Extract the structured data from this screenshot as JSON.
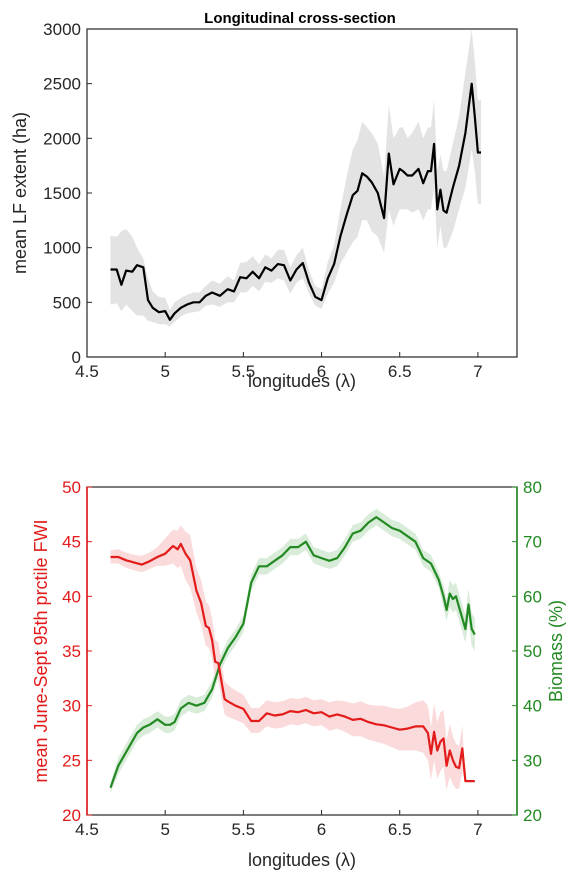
{
  "chart_data": [
    {
      "type": "line",
      "title": "Longitudinal cross-section",
      "xlabel": "longitudes (λ)",
      "ylabel": "mean LF extent (ha)",
      "xlim": [
        4.5,
        7.25
      ],
      "ylim": [
        0,
        3000
      ],
      "xticks": [
        4.5,
        5,
        5.5,
        6,
        6.5,
        7
      ],
      "xtick_labels": [
        "4.5",
        "5",
        "5.5",
        "6",
        "6.5",
        "7"
      ],
      "yticks": [
        0,
        500,
        1000,
        1500,
        2000,
        2500,
        3000
      ],
      "ytick_labels": [
        "0",
        "500",
        "1000",
        "1500",
        "2000",
        "2500",
        "3000"
      ],
      "grid": false,
      "colors": {
        "line": "#000000",
        "band": "#e3e3e3",
        "axis": "#262626"
      },
      "series": [
        {
          "x": [
            4.65,
            4.69,
            4.72,
            4.75,
            4.79,
            4.82,
            4.86,
            4.89,
            4.92,
            4.96,
            5.0,
            5.03,
            5.06,
            5.1,
            5.14,
            5.18,
            5.22,
            5.26,
            5.3,
            5.35,
            5.4,
            5.44,
            5.48,
            5.52,
            5.56,
            5.6,
            5.64,
            5.68,
            5.72,
            5.76,
            5.8,
            5.84,
            5.88,
            5.92,
            5.96,
            6.0,
            6.04,
            6.08,
            6.12,
            6.16,
            6.2,
            6.23,
            6.26,
            6.29,
            6.32,
            6.36,
            6.4,
            6.43,
            6.46,
            6.48,
            6.5,
            6.52,
            6.55,
            6.58,
            6.62,
            6.65,
            6.68,
            6.7,
            6.72,
            6.74,
            6.76,
            6.78,
            6.8,
            6.84,
            6.88,
            6.92,
            6.96,
            6.98,
            7.0,
            7.02
          ],
          "y": [
            800,
            800,
            660,
            790,
            780,
            840,
            820,
            520,
            450,
            410,
            420,
            340,
            400,
            450,
            480,
            500,
            500,
            560,
            590,
            560,
            620,
            600,
            730,
            720,
            780,
            720,
            820,
            790,
            850,
            840,
            700,
            800,
            860,
            680,
            550,
            520,
            720,
            850,
            1100,
            1300,
            1480,
            1520,
            1680,
            1650,
            1600,
            1500,
            1270,
            1860,
            1580,
            1650,
            1720,
            1700,
            1660,
            1660,
            1720,
            1590,
            1700,
            1700,
            1950,
            1350,
            1530,
            1340,
            1320,
            1550,
            1750,
            2050,
            2500,
            2200,
            1870,
            1870
          ],
          "lower": [
            480,
            490,
            420,
            480,
            420,
            380,
            380,
            330,
            320,
            300,
            300,
            280,
            320,
            370,
            400,
            410,
            420,
            470,
            480,
            460,
            500,
            500,
            590,
            590,
            650,
            600,
            690,
            680,
            720,
            700,
            580,
            680,
            720,
            580,
            470,
            440,
            580,
            680,
            850,
            950,
            1050,
            1100,
            1250,
            1250,
            1150,
            1100,
            950,
            1350,
            1200,
            1280,
            1350,
            1350,
            1350,
            1320,
            1350,
            1250,
            1350,
            1350,
            1550,
            1000,
            1200,
            1000,
            1000,
            1150,
            1350,
            1550,
            1900,
            1700,
            1400,
            1400
          ],
          "upper": [
            1110,
            1100,
            1150,
            1170,
            1100,
            1000,
            900,
            720,
            600,
            550,
            540,
            430,
            500,
            540,
            570,
            590,
            590,
            650,
            700,
            670,
            740,
            700,
            860,
            870,
            920,
            850,
            940,
            900,
            980,
            980,
            820,
            930,
            1000,
            790,
            650,
            620,
            870,
            1020,
            1350,
            1650,
            1900,
            1980,
            2150,
            2100,
            2050,
            1950,
            1650,
            2300,
            2000,
            2050,
            2100,
            2100,
            2000,
            2050,
            2150,
            2000,
            2100,
            2100,
            2350,
            1700,
            1850,
            1700,
            1700,
            1950,
            2200,
            2600,
            3000,
            2700,
            2350,
            2350
          ]
        }
      ]
    },
    {
      "type": "line",
      "title": "",
      "xlabel": "longitudes (λ)",
      "ylabel": "mean June-Sept 95th prctile FWI",
      "y2label": "Biomass (%)",
      "xlim": [
        4.5,
        7.25
      ],
      "ylim": [
        20,
        50
      ],
      "y2lim": [
        20,
        80
      ],
      "xticks": [
        4.5,
        5,
        5.5,
        6,
        6.5,
        7
      ],
      "xtick_labels": [
        "4.5",
        "5",
        "5.5",
        "6",
        "6.5",
        "7"
      ],
      "yticks": [
        20,
        25,
        30,
        35,
        40,
        45,
        50
      ],
      "ytick_labels": [
        "20",
        "25",
        "30",
        "35",
        "40",
        "45",
        "50"
      ],
      "y2ticks": [
        20,
        30,
        40,
        50,
        60,
        70,
        80
      ],
      "y2tick_labels": [
        "20",
        "30",
        "40",
        "50",
        "60",
        "70",
        "80"
      ],
      "grid": false,
      "colors": {
        "fwi": "#e31b1b",
        "fwi_band": "#f9d4d4",
        "biomass": "#238a23",
        "biomass_band": "#d9ebd9",
        "axis": "#262626"
      },
      "series": [
        {
          "axis": "left",
          "color": "#e31b1b",
          "x": [
            4.65,
            4.7,
            4.75,
            4.8,
            4.85,
            4.9,
            4.95,
            5.0,
            5.05,
            5.08,
            5.1,
            5.13,
            5.16,
            5.2,
            5.23,
            5.26,
            5.28,
            5.3,
            5.32,
            5.34,
            5.36,
            5.38,
            5.4,
            5.45,
            5.5,
            5.55,
            5.6,
            5.65,
            5.7,
            5.75,
            5.8,
            5.85,
            5.9,
            5.95,
            6.0,
            6.05,
            6.1,
            6.15,
            6.2,
            6.25,
            6.3,
            6.35,
            6.4,
            6.45,
            6.5,
            6.55,
            6.6,
            6.65,
            6.68,
            6.7,
            6.72,
            6.74,
            6.76,
            6.78,
            6.8,
            6.82,
            6.84,
            6.86,
            6.88,
            6.9,
            6.92,
            6.95,
            6.98
          ],
          "y": [
            43.6,
            43.6,
            43.3,
            43.1,
            42.9,
            43.2,
            43.6,
            43.9,
            44.6,
            44.3,
            44.8,
            43.9,
            43.3,
            40.5,
            39.4,
            37.3,
            37.1,
            36.0,
            34.0,
            33.9,
            32.2,
            30.6,
            30.4,
            30.0,
            29.7,
            28.6,
            28.6,
            29.3,
            29.1,
            29.2,
            29.5,
            29.4,
            29.6,
            29.3,
            29.4,
            29.0,
            29.2,
            29.0,
            28.7,
            28.8,
            28.5,
            28.3,
            28.2,
            28.0,
            27.8,
            27.9,
            28.1,
            28.1,
            27.5,
            25.6,
            27.6,
            25.9,
            26.7,
            27.0,
            24.5,
            25.9,
            25.0,
            24.4,
            24.3,
            26.1,
            23.1,
            23.1,
            23.1
          ],
          "lower": [
            43.0,
            43.0,
            42.6,
            42.4,
            42.2,
            42.5,
            42.8,
            42.8,
            43.0,
            42.6,
            42.8,
            41.5,
            40.8,
            38.5,
            37.4,
            35.5,
            35.3,
            34.3,
            32.5,
            32.3,
            30.7,
            29.2,
            29.0,
            28.7,
            28.4,
            27.5,
            27.5,
            28.1,
            27.9,
            28.0,
            28.3,
            28.2,
            28.4,
            28.1,
            28.2,
            27.7,
            27.9,
            27.6,
            27.2,
            27.2,
            26.9,
            26.7,
            26.5,
            26.2,
            25.9,
            25.9,
            25.9,
            25.7,
            25.0,
            23.2,
            25.0,
            23.3,
            24.0,
            24.4,
            22.3,
            23.5,
            22.8,
            22.4,
            22.4,
            24.0,
            23.1,
            23.1,
            23.1
          ],
          "upper": [
            44.2,
            44.3,
            44.0,
            43.8,
            43.7,
            44.0,
            44.5,
            45.3,
            46.1,
            46.0,
            46.5,
            45.9,
            45.6,
            42.5,
            41.5,
            39.5,
            39.2,
            38.0,
            36.0,
            35.8,
            34.0,
            32.2,
            31.9,
            31.4,
            31.0,
            29.8,
            29.8,
            30.5,
            30.3,
            30.4,
            30.7,
            30.6,
            30.8,
            30.5,
            30.6,
            30.3,
            30.5,
            30.4,
            30.2,
            30.4,
            30.1,
            30.0,
            30.0,
            29.8,
            29.7,
            29.9,
            30.3,
            30.5,
            30.0,
            28.0,
            30.2,
            28.5,
            29.4,
            29.6,
            26.8,
            28.3,
            27.2,
            26.5,
            26.3,
            28.2,
            23.1,
            23.1,
            23.1
          ]
        },
        {
          "axis": "right",
          "color": "#238a23",
          "x": [
            4.65,
            4.7,
            4.74,
            4.78,
            4.82,
            4.86,
            4.9,
            4.95,
            5.0,
            5.03,
            5.06,
            5.1,
            5.15,
            5.2,
            5.25,
            5.3,
            5.35,
            5.4,
            5.45,
            5.5,
            5.55,
            5.6,
            5.65,
            5.7,
            5.75,
            5.8,
            5.85,
            5.9,
            5.95,
            6.0,
            6.05,
            6.1,
            6.15,
            6.2,
            6.25,
            6.3,
            6.35,
            6.4,
            6.45,
            6.5,
            6.55,
            6.6,
            6.65,
            6.7,
            6.75,
            6.78,
            6.8,
            6.82,
            6.84,
            6.86,
            6.88,
            6.9,
            6.92,
            6.94,
            6.96,
            6.98
          ],
          "y": [
            25,
            29,
            31,
            33,
            35,
            36,
            36.5,
            37.5,
            36.5,
            36.5,
            37,
            39.5,
            40.5,
            40,
            40.5,
            43,
            47.5,
            50.5,
            52.5,
            55,
            62.5,
            65.5,
            65.5,
            66.5,
            67.5,
            69,
            69,
            70,
            67.5,
            67,
            66.5,
            67,
            69,
            71.5,
            72,
            73.5,
            74.5,
            73.5,
            72.5,
            72,
            71,
            70,
            67,
            66,
            63,
            60,
            57.5,
            60.5,
            59.5,
            60,
            58,
            56,
            54,
            58.5,
            54,
            53
          ],
          "lower": [
            24,
            27.5,
            29.5,
            31.5,
            33.5,
            34.5,
            35,
            36,
            35,
            35,
            35.5,
            38,
            39,
            38.5,
            39,
            41.5,
            46,
            49,
            51,
            53.5,
            61,
            64,
            64,
            65,
            66,
            67.5,
            67.5,
            68.5,
            66,
            65.5,
            65,
            65.5,
            67.5,
            70,
            70.5,
            72,
            73,
            72,
            71,
            70.5,
            69.5,
            68.5,
            65.5,
            64.5,
            61.5,
            58,
            55.5,
            58,
            57,
            57.5,
            55.5,
            53.5,
            51.5,
            55.5,
            51,
            50
          ],
          "upper": [
            26,
            30.5,
            32.5,
            34.5,
            36.5,
            37.5,
            38,
            39,
            38,
            38,
            38.5,
            41,
            42,
            41.5,
            42,
            44.5,
            49,
            52,
            54,
            56.5,
            64,
            67,
            67,
            68,
            69,
            70.5,
            70.5,
            71.5,
            69,
            68.5,
            68,
            68.5,
            70.5,
            73,
            73.5,
            75,
            76,
            75,
            74,
            73.5,
            72.5,
            71.5,
            68.5,
            67.5,
            64.5,
            62,
            59.5,
            63,
            62,
            62.5,
            60.5,
            58.5,
            56.5,
            61.5,
            57,
            56
          ]
        }
      ]
    }
  ]
}
